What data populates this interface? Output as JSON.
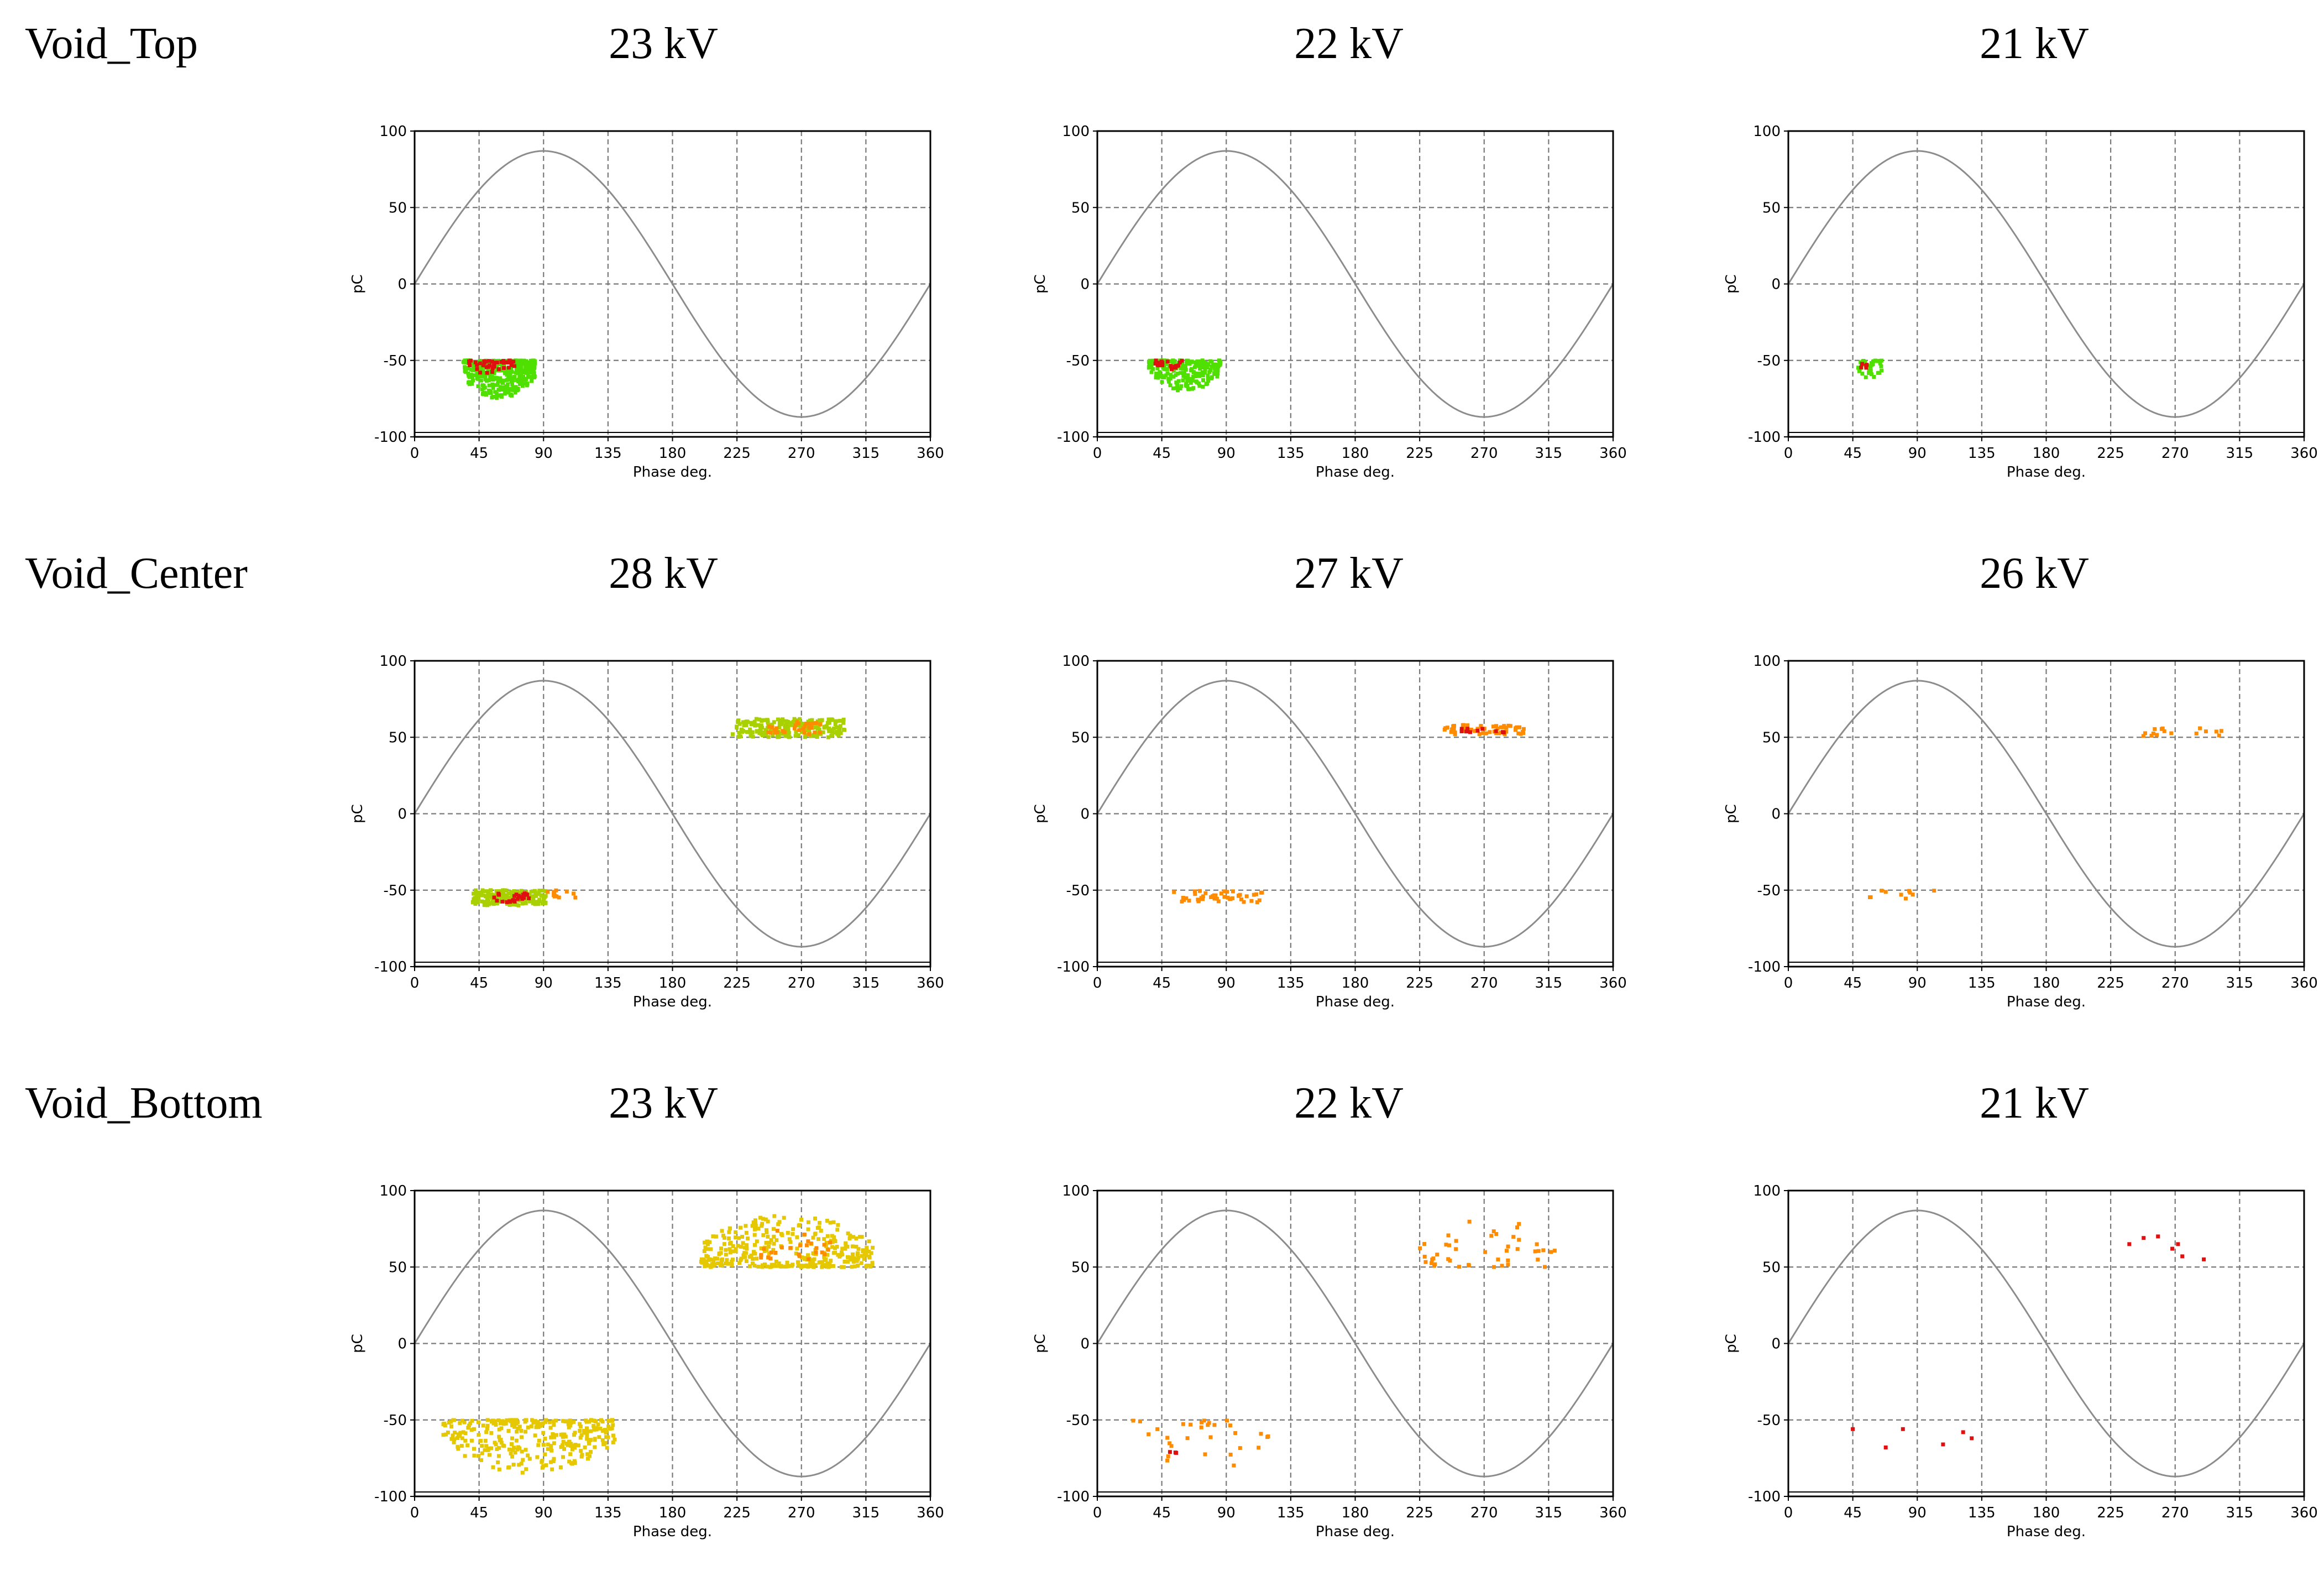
{
  "rows": [
    {
      "label": "Void_Top"
    },
    {
      "label": "Void_Center"
    },
    {
      "label": "Void_Bottom"
    }
  ],
  "colors": {
    "sine": "#8c8c8c",
    "grid": "#7a7a7a",
    "frame": "#000000",
    "green": "#4fe000",
    "red": "#e01010",
    "orange": "#ff8c00",
    "yellow": "#e6c800",
    "yellowgreen": "#a9d000"
  },
  "chart_data": [
    {
      "type": "scatter",
      "row": 0,
      "col": 0,
      "heading": "23 kV",
      "xlabel": "Phase deg.",
      "ylabel": "pC",
      "xlim": [
        0,
        360
      ],
      "ylim": [
        -100,
        100
      ],
      "xticks": [
        "0",
        "45",
        "90",
        "135",
        "180",
        "225",
        "270",
        "315",
        "360"
      ],
      "yticks": [
        "100",
        "50",
        "0",
        "-50",
        "-100"
      ],
      "grid": true,
      "sine": {
        "amplitude": 87,
        "period": 360
      },
      "clusters": [
        {
          "x": [
            34,
            84
          ],
          "y": [
            -75,
            -50
          ],
          "count": 380,
          "color": "green",
          "seed": 11,
          "spread": "down"
        },
        {
          "x": [
            38,
            70
          ],
          "y": [
            -60,
            -50
          ],
          "count": 40,
          "color": "red",
          "seed": 12,
          "spread": "down"
        }
      ]
    },
    {
      "type": "scatter",
      "row": 0,
      "col": 1,
      "heading": "22 kV",
      "xlabel": "Phase deg.",
      "ylabel": "pC",
      "xlim": [
        0,
        360
      ],
      "ylim": [
        -100,
        100
      ],
      "xticks": [
        "0",
        "45",
        "90",
        "135",
        "180",
        "225",
        "270",
        "315",
        "360"
      ],
      "yticks": [
        "100",
        "50",
        "0",
        "-50",
        "-100"
      ],
      "grid": true,
      "sine": {
        "amplitude": 87,
        "period": 360
      },
      "clusters": [
        {
          "x": [
            36,
            86
          ],
          "y": [
            -70,
            -50
          ],
          "count": 230,
          "color": "green",
          "seed": 21,
          "spread": "down"
        },
        {
          "x": [
            40,
            60
          ],
          "y": [
            -56,
            -50
          ],
          "count": 20,
          "color": "red",
          "seed": 22,
          "spread": "down"
        }
      ]
    },
    {
      "type": "scatter",
      "row": 0,
      "col": 2,
      "heading": "21 kV",
      "xlabel": "Phase deg.",
      "ylabel": "pC",
      "xlim": [
        0,
        360
      ],
      "ylim": [
        -100,
        100
      ],
      "xticks": [
        "0",
        "45",
        "90",
        "135",
        "180",
        "225",
        "270",
        "315",
        "360"
      ],
      "yticks": [
        "100",
        "50",
        "0",
        "-50",
        "-100"
      ],
      "grid": true,
      "sine": {
        "amplitude": 87,
        "period": 360
      },
      "clusters": [
        {
          "x": [
            48,
            66
          ],
          "y": [
            -62,
            -50
          ],
          "count": 35,
          "color": "green",
          "seed": 31,
          "spread": "down"
        },
        {
          "x": [
            50,
            56
          ],
          "y": [
            -56,
            -52
          ],
          "count": 5,
          "color": "red",
          "seed": 32,
          "spread": "down"
        }
      ]
    },
    {
      "type": "scatter",
      "row": 1,
      "col": 0,
      "heading": "28 kV",
      "xlabel": "Phase deg.",
      "ylabel": "pC",
      "xlim": [
        0,
        360
      ],
      "ylim": [
        -100,
        100
      ],
      "xticks": [
        "0",
        "45",
        "90",
        "135",
        "180",
        "225",
        "270",
        "315",
        "360"
      ],
      "yticks": [
        "100",
        "50",
        "0",
        "-50",
        "-100"
      ],
      "grid": true,
      "sine": {
        "amplitude": 87,
        "period": 360
      },
      "clusters": [
        {
          "x": [
            40,
            92
          ],
          "y": [
            -60,
            -50
          ],
          "count": 170,
          "color": "yellowgreen",
          "seed": 41,
          "spread": "mid"
        },
        {
          "x": [
            55,
            80
          ],
          "y": [
            -58,
            -52
          ],
          "count": 25,
          "color": "red",
          "seed": 42,
          "spread": "mid"
        },
        {
          "x": [
            92,
            115
          ],
          "y": [
            -55,
            -50
          ],
          "count": 12,
          "color": "orange",
          "seed": 43,
          "spread": "mid"
        },
        {
          "x": [
            222,
            300
          ],
          "y": [
            50,
            62
          ],
          "count": 210,
          "color": "yellowgreen",
          "seed": 44,
          "spread": "mid"
        },
        {
          "x": [
            240,
            285
          ],
          "y": [
            52,
            60
          ],
          "count": 30,
          "color": "orange",
          "seed": 45,
          "spread": "mid"
        }
      ]
    },
    {
      "type": "scatter",
      "row": 1,
      "col": 1,
      "heading": "27 kV",
      "xlabel": "Phase deg.",
      "ylabel": "pC",
      "xlim": [
        0,
        360
      ],
      "ylim": [
        -100,
        100
      ],
      "xticks": [
        "0",
        "45",
        "90",
        "135",
        "180",
        "225",
        "270",
        "315",
        "360"
      ],
      "yticks": [
        "100",
        "50",
        "0",
        "-50",
        "-100"
      ],
      "grid": true,
      "sine": {
        "amplitude": 87,
        "period": 360
      },
      "clusters": [
        {
          "x": [
            52,
            115
          ],
          "y": [
            -58,
            -50
          ],
          "count": 45,
          "color": "orange",
          "seed": 51,
          "spread": "mid"
        },
        {
          "x": [
            240,
            300
          ],
          "y": [
            52,
            58
          ],
          "count": 55,
          "color": "orange",
          "seed": 52,
          "spread": "mid"
        },
        {
          "x": [
            250,
            290
          ],
          "y": [
            53,
            57
          ],
          "count": 10,
          "color": "red",
          "seed": 53,
          "spread": "mid"
        }
      ]
    },
    {
      "type": "scatter",
      "row": 1,
      "col": 2,
      "heading": "26 kV",
      "xlabel": "Phase deg.",
      "ylabel": "pC",
      "xlim": [
        0,
        360
      ],
      "ylim": [
        -100,
        100
      ],
      "xticks": [
        "0",
        "45",
        "90",
        "135",
        "180",
        "225",
        "270",
        "315",
        "360"
      ],
      "yticks": [
        "100",
        "50",
        "0",
        "-50",
        "-100"
      ],
      "grid": true,
      "sine": {
        "amplitude": 87,
        "period": 360
      },
      "clusters": [
        {
          "x": [
            55,
            105
          ],
          "y": [
            -56,
            -50
          ],
          "count": 10,
          "color": "orange",
          "seed": 61,
          "spread": "mid"
        },
        {
          "x": [
            245,
            305
          ],
          "y": [
            50,
            56
          ],
          "count": 16,
          "color": "orange",
          "seed": 62,
          "spread": "mid"
        }
      ]
    },
    {
      "type": "scatter",
      "row": 2,
      "col": 0,
      "heading": "23 kV",
      "xlabel": "Phase deg.",
      "ylabel": "pC",
      "xlim": [
        0,
        360
      ],
      "ylim": [
        -100,
        100
      ],
      "xticks": [
        "0",
        "45",
        "90",
        "135",
        "180",
        "225",
        "270",
        "315",
        "360"
      ],
      "yticks": [
        "100",
        "50",
        "0",
        "-50",
        "-100"
      ],
      "grid": true,
      "sine": {
        "amplitude": 87,
        "period": 360
      },
      "clusters": [
        {
          "x": [
            20,
            140
          ],
          "y": [
            -85,
            -50
          ],
          "count": 300,
          "color": "yellow",
          "seed": 71,
          "spread": "down"
        },
        {
          "x": [
            200,
            320
          ],
          "y": [
            50,
            85
          ],
          "count": 330,
          "color": "yellow",
          "seed": 72,
          "spread": "up"
        },
        {
          "x": [
            240,
            290
          ],
          "y": [
            55,
            80
          ],
          "count": 25,
          "color": "orange",
          "seed": 73,
          "spread": "up"
        }
      ]
    },
    {
      "type": "scatter",
      "row": 2,
      "col": 1,
      "heading": "22 kV",
      "xlabel": "Phase deg.",
      "ylabel": "pC",
      "xlim": [
        0,
        360
      ],
      "ylim": [
        -100,
        100
      ],
      "xticks": [
        "0",
        "45",
        "90",
        "135",
        "180",
        "225",
        "270",
        "315",
        "360"
      ],
      "yticks": [
        "100",
        "50",
        "0",
        "-50",
        "-100"
      ],
      "grid": true,
      "sine": {
        "amplitude": 87,
        "period": 360
      },
      "clusters": [
        {
          "x": [
            25,
            120
          ],
          "y": [
            -85,
            -50
          ],
          "count": 30,
          "color": "orange",
          "seed": 81,
          "spread": "down"
        },
        {
          "x": [
            225,
            320
          ],
          "y": [
            50,
            82
          ],
          "count": 45,
          "color": "orange",
          "seed": 82,
          "spread": "up"
        },
        {
          "x": [
            48,
            58
          ],
          "y": [
            -75,
            -70
          ],
          "count": 3,
          "color": "red",
          "seed": 83,
          "spread": "mid"
        }
      ]
    },
    {
      "type": "scatter",
      "row": 2,
      "col": 2,
      "heading": "21 kV",
      "xlabel": "Phase deg.",
      "ylabel": "pC",
      "xlim": [
        0,
        360
      ],
      "ylim": [
        -100,
        100
      ],
      "xticks": [
        "0",
        "45",
        "90",
        "135",
        "180",
        "225",
        "270",
        "315",
        "360"
      ],
      "yticks": [
        "100",
        "50",
        "0",
        "-50",
        "-100"
      ],
      "grid": true,
      "sine": {
        "amplitude": 87,
        "period": 360
      },
      "points": {
        "color": "red",
        "x": [
          45,
          68,
          80,
          108,
          122,
          128,
          238,
          248,
          258,
          268,
          272,
          275,
          290
        ],
        "y": [
          -56,
          -68,
          -56,
          -66,
          -58,
          -62,
          65,
          69,
          70,
          62,
          65,
          57,
          55
        ]
      }
    }
  ]
}
